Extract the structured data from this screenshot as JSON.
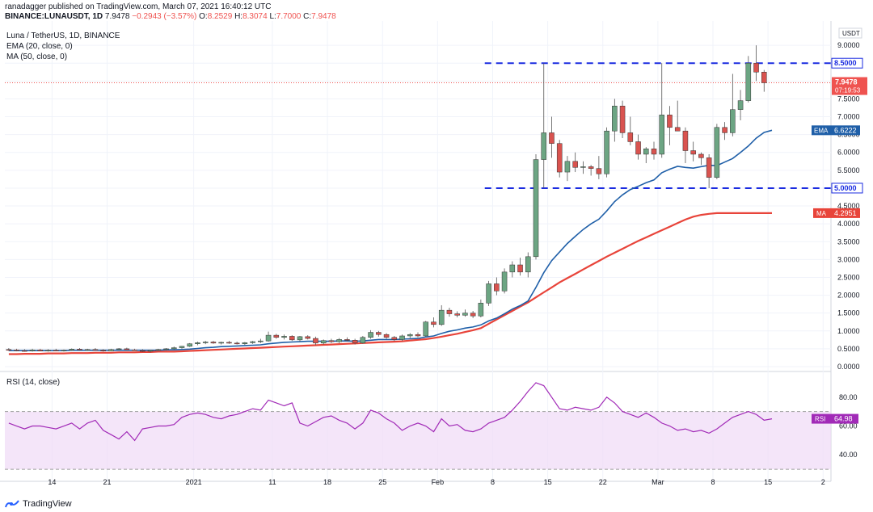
{
  "header": {
    "publish_line": "ranadagger published on TradingView.com, March 07, 2021 16:40:12 UTC",
    "symbol": "BINANCE:LUNAUSDT, 1D",
    "price": "7.9478",
    "change": "−0.2943 (−3.57%)",
    "o_label": "O:",
    "o_val": "8.2529",
    "h_label": "H:",
    "h_val": "8.3074",
    "l_label": "L:",
    "l_val": "7.7000",
    "c_label": "C:",
    "c_val": "7.9478"
  },
  "legend": {
    "title": "Luna / TetherUS, 1D, BINANCE",
    "ema": "EMA (20, close, 0)",
    "ma": "MA (50, close, 0)"
  },
  "rsi_legend": "RSI (14, close)",
  "currency": "USDT",
  "footer": {
    "brand": "TradingView"
  },
  "colors": {
    "up": "#6ca583",
    "down": "#d9534f",
    "ema": "#1f5fa8",
    "ma": "#e8443a",
    "rsi": "#a12ab7",
    "rsi_band": "#f0dcf7",
    "level": "#1a2be0",
    "price_line": "#ef5350"
  },
  "chart_data": [
    {
      "type": "candlestick",
      "title": "Luna / TetherUS, 1D, BINANCE",
      "ylabel": "USDT",
      "ylim": [
        0,
        9.5
      ],
      "y_ticks": [
        0,
        0.5,
        1,
        1.5,
        2,
        2.5,
        3,
        3.5,
        4,
        4.5,
        5,
        5.5,
        6,
        6.5,
        7,
        7.5,
        8,
        8.5,
        9
      ],
      "y_tick_labels": [
        "0.0000",
        "0.5000",
        "1.0000",
        "1.5000",
        "2.0000",
        "2.5000",
        "3.0000",
        "3.5000",
        "4.0000",
        "4.5000",
        "5.0000",
        "5.5000",
        "6.0000",
        "6.5000",
        "7.0000",
        "7.5000",
        "8.0000",
        "8.5000",
        "9.0000"
      ],
      "x_ticks": [
        {
          "day": 14,
          "label": "14"
        },
        {
          "day": 21,
          "label": "21"
        },
        {
          "day": 32,
          "label": "2021"
        },
        {
          "day": 42,
          "label": "11"
        },
        {
          "day": 49,
          "label": "18"
        },
        {
          "day": 56,
          "label": "25"
        },
        {
          "day": 63,
          "label": "Feb"
        },
        {
          "day": 70,
          "label": "8"
        },
        {
          "day": 77,
          "label": "15"
        },
        {
          "day": 84,
          "label": "22"
        },
        {
          "day": 91,
          "label": "Mar"
        },
        {
          "day": 98,
          "label": "8"
        },
        {
          "day": 105,
          "label": "15"
        },
        {
          "day": 112,
          "label": "2"
        }
      ],
      "candles": [
        {
          "o": 0.48,
          "h": 0.52,
          "l": 0.44,
          "c": 0.47
        },
        {
          "o": 0.47,
          "h": 0.5,
          "l": 0.43,
          "c": 0.45
        },
        {
          "o": 0.45,
          "h": 0.49,
          "l": 0.42,
          "c": 0.44
        },
        {
          "o": 0.44,
          "h": 0.5,
          "l": 0.42,
          "c": 0.47
        },
        {
          "o": 0.47,
          "h": 0.5,
          "l": 0.43,
          "c": 0.44
        },
        {
          "o": 0.44,
          "h": 0.49,
          "l": 0.42,
          "c": 0.46
        },
        {
          "o": 0.46,
          "h": 0.5,
          "l": 0.43,
          "c": 0.44
        },
        {
          "o": 0.44,
          "h": 0.48,
          "l": 0.42,
          "c": 0.46
        },
        {
          "o": 0.46,
          "h": 0.51,
          "l": 0.44,
          "c": 0.49
        },
        {
          "o": 0.49,
          "h": 0.52,
          "l": 0.45,
          "c": 0.47
        },
        {
          "o": 0.47,
          "h": 0.5,
          "l": 0.44,
          "c": 0.48
        },
        {
          "o": 0.48,
          "h": 0.52,
          "l": 0.45,
          "c": 0.46
        },
        {
          "o": 0.46,
          "h": 0.49,
          "l": 0.42,
          "c": 0.44
        },
        {
          "o": 0.44,
          "h": 0.5,
          "l": 0.43,
          "c": 0.48
        },
        {
          "o": 0.48,
          "h": 0.52,
          "l": 0.45,
          "c": 0.5
        },
        {
          "o": 0.5,
          "h": 0.53,
          "l": 0.46,
          "c": 0.47
        },
        {
          "o": 0.47,
          "h": 0.5,
          "l": 0.44,
          "c": 0.45
        },
        {
          "o": 0.45,
          "h": 0.49,
          "l": 0.41,
          "c": 0.43
        },
        {
          "o": 0.43,
          "h": 0.47,
          "l": 0.4,
          "c": 0.46
        },
        {
          "o": 0.46,
          "h": 0.5,
          "l": 0.44,
          "c": 0.48
        },
        {
          "o": 0.48,
          "h": 0.52,
          "l": 0.45,
          "c": 0.5
        },
        {
          "o": 0.5,
          "h": 0.56,
          "l": 0.48,
          "c": 0.53
        },
        {
          "o": 0.53,
          "h": 0.58,
          "l": 0.5,
          "c": 0.57
        },
        {
          "o": 0.57,
          "h": 0.66,
          "l": 0.55,
          "c": 0.64
        },
        {
          "o": 0.64,
          "h": 0.7,
          "l": 0.6,
          "c": 0.67
        },
        {
          "o": 0.67,
          "h": 0.72,
          "l": 0.63,
          "c": 0.69
        },
        {
          "o": 0.69,
          "h": 0.72,
          "l": 0.64,
          "c": 0.66
        },
        {
          "o": 0.66,
          "h": 0.7,
          "l": 0.62,
          "c": 0.68
        },
        {
          "o": 0.68,
          "h": 0.72,
          "l": 0.64,
          "c": 0.66
        },
        {
          "o": 0.66,
          "h": 0.7,
          "l": 0.62,
          "c": 0.64
        },
        {
          "o": 0.64,
          "h": 0.69,
          "l": 0.61,
          "c": 0.67
        },
        {
          "o": 0.67,
          "h": 0.72,
          "l": 0.64,
          "c": 0.7
        },
        {
          "o": 0.7,
          "h": 0.78,
          "l": 0.66,
          "c": 0.72
        },
        {
          "o": 0.72,
          "h": 0.98,
          "l": 0.7,
          "c": 0.88
        },
        {
          "o": 0.88,
          "h": 0.92,
          "l": 0.78,
          "c": 0.82
        },
        {
          "o": 0.82,
          "h": 0.9,
          "l": 0.76,
          "c": 0.85
        },
        {
          "o": 0.85,
          "h": 0.88,
          "l": 0.72,
          "c": 0.75
        },
        {
          "o": 0.75,
          "h": 0.86,
          "l": 0.7,
          "c": 0.84
        },
        {
          "o": 0.84,
          "h": 0.88,
          "l": 0.76,
          "c": 0.79
        },
        {
          "o": 0.79,
          "h": 0.84,
          "l": 0.6,
          "c": 0.66
        },
        {
          "o": 0.66,
          "h": 0.76,
          "l": 0.62,
          "c": 0.73
        },
        {
          "o": 0.73,
          "h": 0.78,
          "l": 0.66,
          "c": 0.7
        },
        {
          "o": 0.7,
          "h": 0.8,
          "l": 0.66,
          "c": 0.76
        },
        {
          "o": 0.76,
          "h": 0.82,
          "l": 0.7,
          "c": 0.74
        },
        {
          "o": 0.74,
          "h": 0.78,
          "l": 0.62,
          "c": 0.66
        },
        {
          "o": 0.66,
          "h": 0.86,
          "l": 0.64,
          "c": 0.82
        },
        {
          "o": 0.82,
          "h": 1.02,
          "l": 0.78,
          "c": 0.96
        },
        {
          "o": 0.96,
          "h": 1.0,
          "l": 0.84,
          "c": 0.9
        },
        {
          "o": 0.9,
          "h": 0.94,
          "l": 0.78,
          "c": 0.82
        },
        {
          "o": 0.82,
          "h": 0.86,
          "l": 0.72,
          "c": 0.76
        },
        {
          "o": 0.76,
          "h": 0.9,
          "l": 0.72,
          "c": 0.86
        },
        {
          "o": 0.86,
          "h": 0.94,
          "l": 0.8,
          "c": 0.9
        },
        {
          "o": 0.9,
          "h": 0.96,
          "l": 0.82,
          "c": 0.86
        },
        {
          "o": 0.86,
          "h": 1.28,
          "l": 0.84,
          "c": 1.25
        },
        {
          "o": 1.25,
          "h": 1.38,
          "l": 1.1,
          "c": 1.18
        },
        {
          "o": 1.18,
          "h": 1.72,
          "l": 1.14,
          "c": 1.58
        },
        {
          "o": 1.58,
          "h": 1.65,
          "l": 1.4,
          "c": 1.48
        },
        {
          "o": 1.48,
          "h": 1.55,
          "l": 1.38,
          "c": 1.44
        },
        {
          "o": 1.44,
          "h": 1.6,
          "l": 1.4,
          "c": 1.5
        },
        {
          "o": 1.5,
          "h": 1.56,
          "l": 1.36,
          "c": 1.42
        },
        {
          "o": 1.42,
          "h": 1.88,
          "l": 1.38,
          "c": 1.78
        },
        {
          "o": 1.78,
          "h": 2.4,
          "l": 1.7,
          "c": 2.32
        },
        {
          "o": 2.32,
          "h": 2.5,
          "l": 2.0,
          "c": 2.12
        },
        {
          "o": 2.12,
          "h": 2.75,
          "l": 2.05,
          "c": 2.65
        },
        {
          "o": 2.65,
          "h": 2.95,
          "l": 2.5,
          "c": 2.85
        },
        {
          "o": 2.85,
          "h": 3.05,
          "l": 2.55,
          "c": 2.65
        },
        {
          "o": 2.65,
          "h": 3.2,
          "l": 2.5,
          "c": 3.08
        },
        {
          "o": 3.08,
          "h": 5.95,
          "l": 3.0,
          "c": 5.8
        },
        {
          "o": 5.8,
          "h": 8.5,
          "l": 5.0,
          "c": 6.55
        },
        {
          "o": 6.55,
          "h": 7.0,
          "l": 5.85,
          "c": 6.25
        },
        {
          "o": 6.25,
          "h": 6.35,
          "l": 5.3,
          "c": 5.45
        },
        {
          "o": 5.45,
          "h": 5.9,
          "l": 5.2,
          "c": 5.75
        },
        {
          "o": 5.75,
          "h": 6.0,
          "l": 5.45,
          "c": 5.58
        },
        {
          "o": 5.58,
          "h": 5.75,
          "l": 5.4,
          "c": 5.6
        },
        {
          "o": 5.6,
          "h": 5.65,
          "l": 5.35,
          "c": 5.55
        },
        {
          "o": 5.55,
          "h": 5.9,
          "l": 5.25,
          "c": 5.4
        },
        {
          "o": 5.4,
          "h": 6.7,
          "l": 5.3,
          "c": 6.6
        },
        {
          "o": 6.6,
          "h": 7.5,
          "l": 6.3,
          "c": 7.3
        },
        {
          "o": 7.3,
          "h": 7.45,
          "l": 6.4,
          "c": 6.55
        },
        {
          "o": 6.55,
          "h": 7.0,
          "l": 6.2,
          "c": 6.3
        },
        {
          "o": 6.3,
          "h": 6.5,
          "l": 5.8,
          "c": 5.95
        },
        {
          "o": 5.95,
          "h": 6.15,
          "l": 5.7,
          "c": 6.1
        },
        {
          "o": 6.1,
          "h": 6.3,
          "l": 5.8,
          "c": 5.95
        },
        {
          "o": 5.95,
          "h": 8.5,
          "l": 5.85,
          "c": 7.05
        },
        {
          "o": 7.05,
          "h": 7.3,
          "l": 6.2,
          "c": 6.7
        },
        {
          "o": 6.7,
          "h": 7.45,
          "l": 6.6,
          "c": 6.6
        },
        {
          "o": 6.6,
          "h": 6.7,
          "l": 5.7,
          "c": 6.05
        },
        {
          "o": 6.05,
          "h": 6.3,
          "l": 5.75,
          "c": 5.95
        },
        {
          "o": 5.95,
          "h": 6.0,
          "l": 5.65,
          "c": 5.85
        },
        {
          "o": 5.85,
          "h": 5.95,
          "l": 5.0,
          "c": 5.3
        },
        {
          "o": 5.3,
          "h": 6.8,
          "l": 5.25,
          "c": 6.7
        },
        {
          "o": 6.7,
          "h": 6.85,
          "l": 6.35,
          "c": 6.55
        },
        {
          "o": 6.55,
          "h": 8.2,
          "l": 6.45,
          "c": 7.2
        },
        {
          "o": 7.2,
          "h": 7.75,
          "l": 6.9,
          "c": 7.45
        },
        {
          "o": 7.45,
          "h": 8.7,
          "l": 7.4,
          "c": 8.5
        },
        {
          "o": 8.5,
          "h": 9.0,
          "l": 8.0,
          "c": 8.25
        },
        {
          "o": 8.25,
          "h": 8.31,
          "l": 7.7,
          "c": 7.95
        }
      ],
      "ema": {
        "name": "EMA",
        "last_label": "6.6222",
        "values": [
          0.45,
          0.45,
          0.45,
          0.45,
          0.45,
          0.45,
          0.45,
          0.45,
          0.46,
          0.46,
          0.46,
          0.46,
          0.46,
          0.46,
          0.46,
          0.46,
          0.46,
          0.46,
          0.46,
          0.46,
          0.47,
          0.47,
          0.48,
          0.49,
          0.51,
          0.53,
          0.54,
          0.56,
          0.57,
          0.58,
          0.59,
          0.6,
          0.61,
          0.64,
          0.66,
          0.68,
          0.69,
          0.7,
          0.71,
          0.71,
          0.71,
          0.71,
          0.72,
          0.72,
          0.71,
          0.72,
          0.74,
          0.76,
          0.76,
          0.76,
          0.77,
          0.78,
          0.79,
          0.83,
          0.86,
          0.93,
          0.99,
          1.03,
          1.08,
          1.11,
          1.17,
          1.28,
          1.36,
          1.48,
          1.61,
          1.71,
          1.84,
          2.22,
          2.63,
          2.97,
          3.21,
          3.45,
          3.65,
          3.84,
          4.0,
          4.13,
          4.36,
          4.62,
          4.81,
          4.96,
          5.05,
          5.15,
          5.23,
          5.43,
          5.53,
          5.61,
          5.58,
          5.56,
          5.6,
          5.64,
          5.63,
          5.73,
          5.83,
          6.0,
          6.18,
          6.4,
          6.56,
          6.62
        ]
      },
      "ma": {
        "name": "MA",
        "last_label": "4.2951",
        "values": [
          0.35,
          0.35,
          0.36,
          0.36,
          0.36,
          0.37,
          0.37,
          0.37,
          0.38,
          0.38,
          0.38,
          0.39,
          0.39,
          0.39,
          0.4,
          0.4,
          0.4,
          0.41,
          0.41,
          0.42,
          0.42,
          0.42,
          0.43,
          0.44,
          0.45,
          0.46,
          0.47,
          0.48,
          0.49,
          0.5,
          0.51,
          0.52,
          0.53,
          0.54,
          0.55,
          0.56,
          0.57,
          0.58,
          0.59,
          0.6,
          0.61,
          0.62,
          0.63,
          0.64,
          0.65,
          0.66,
          0.67,
          0.68,
          0.69,
          0.7,
          0.71,
          0.73,
          0.75,
          0.77,
          0.8,
          0.84,
          0.88,
          0.92,
          0.97,
          1.02,
          1.08,
          1.2,
          1.32,
          1.44,
          1.56,
          1.68,
          1.8,
          1.94,
          2.08,
          2.22,
          2.36,
          2.48,
          2.6,
          2.72,
          2.84,
          2.96,
          3.08,
          3.19,
          3.3,
          3.41,
          3.52,
          3.62,
          3.72,
          3.82,
          3.92,
          4.02,
          4.12,
          4.2,
          4.25,
          4.28,
          4.3,
          4.3,
          4.3,
          4.3,
          4.3,
          4.3,
          4.3,
          4.3
        ]
      },
      "last_price_label": "7.9478",
      "countdown_label": "07:19:53",
      "levels": [
        {
          "value": 8.5,
          "label": "8.5000",
          "from_day": 69
        },
        {
          "value": 5.0,
          "label": "5.0000",
          "from_day": 69
        }
      ]
    },
    {
      "type": "line",
      "title": "RSI (14, close)",
      "ylim": [
        25,
        95
      ],
      "y_ticks": [
        40,
        60,
        80
      ],
      "y_tick_labels": [
        "40.00",
        "60.00",
        "80.00"
      ],
      "band": [
        30,
        70
      ],
      "series": [
        {
          "name": "RSI",
          "last_label": "64.98",
          "values": [
            62,
            60,
            58,
            60,
            60,
            59,
            58,
            60,
            62,
            58,
            62,
            64,
            57,
            54,
            51,
            56,
            50,
            58,
            59,
            60,
            60,
            61,
            66,
            68,
            69,
            68,
            66,
            65,
            67,
            68,
            70,
            72,
            71,
            78,
            76,
            74,
            76,
            62,
            60,
            63,
            66,
            67,
            64,
            62,
            58,
            62,
            71,
            69,
            65,
            62,
            57,
            60,
            62,
            60,
            56,
            65,
            60,
            61,
            57,
            56,
            58,
            62,
            64,
            66,
            71,
            77,
            84,
            90,
            88,
            80,
            72,
            71,
            73,
            72,
            71,
            73,
            80,
            76,
            70,
            68,
            66,
            69,
            66,
            62,
            60,
            57,
            58,
            56,
            57,
            55,
            58,
            62,
            66,
            68,
            70,
            68,
            64,
            65
          ]
        }
      ]
    }
  ]
}
